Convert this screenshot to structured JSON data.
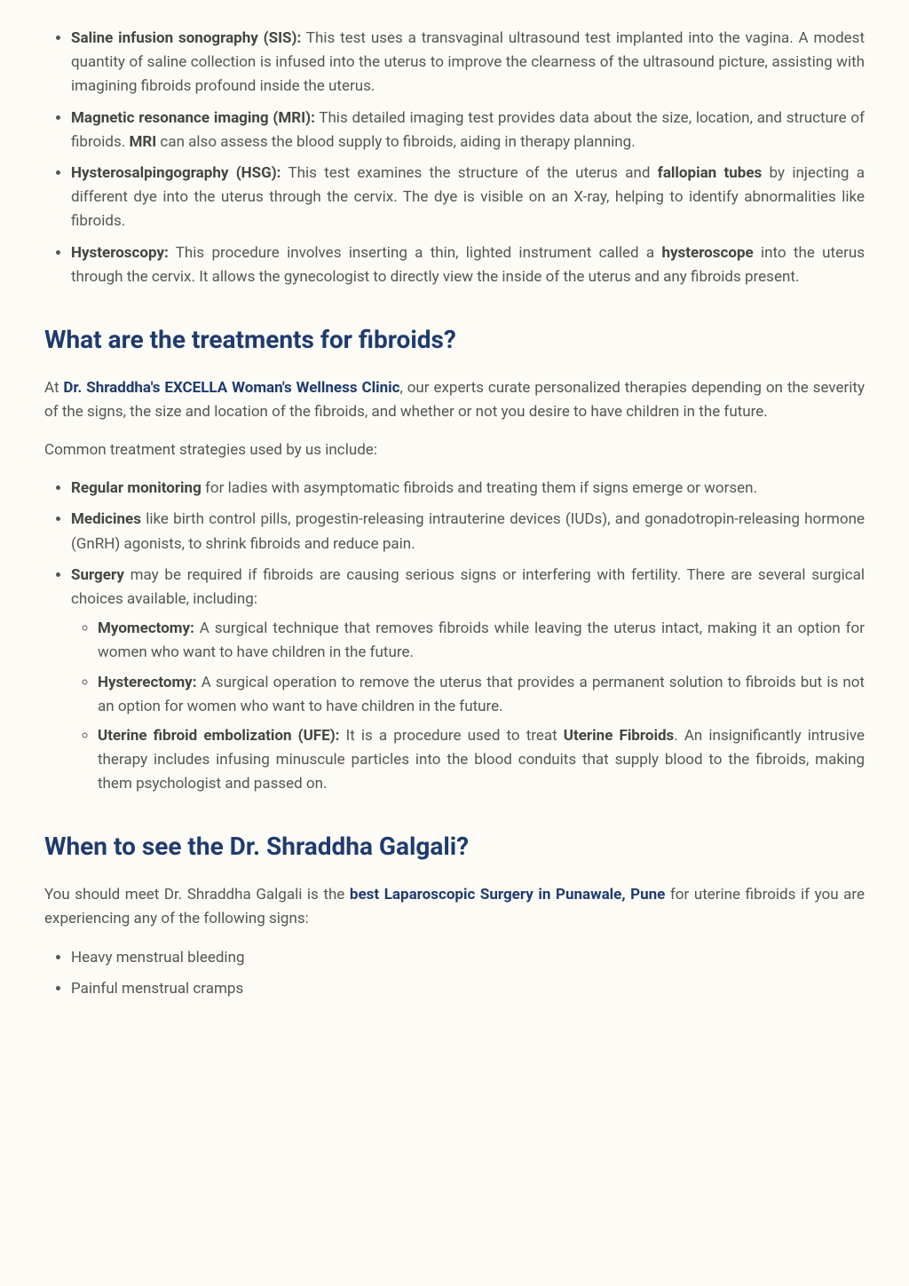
{
  "diag": {
    "sis_label": "Saline infusion sonography (SIS):",
    "sis_text": " This test uses a transvaginal ultrasound test implanted into the vagina. A modest quantity of saline collection is infused into the uterus to improve the clearness of the ultrasound picture, assisting with imagining fibroids profound inside the uterus.",
    "mri_label": "Magnetic resonance imaging (MRI):",
    "mri_text1": " This detailed imaging test provides data about the size, location, and structure of fibroids. ",
    "mri_bold": "MRI",
    "mri_text2": " can also assess the blood supply to fibroids, aiding in therapy planning.",
    "hsg_label": "Hysterosalpingography (HSG):",
    "hsg_text1": " This test examines the structure of the uterus and ",
    "hsg_bold": "fallopian tubes",
    "hsg_text2": " by injecting a different dye into the uterus through the cervix. The dye is visible on an X-ray, helping to identify abnormalities like fibroids.",
    "hyst_label": "Hysteroscopy:",
    "hyst_text1": " This procedure involves inserting a thin, lighted instrument called a ",
    "hyst_bold": "hysteroscope",
    "hyst_text2": " into the uterus through the cervix. It allows the gynecologist to directly view the inside of the uterus and any fibroids present."
  },
  "treat": {
    "heading": "What are the treatments for fibroids?",
    "intro_pre": "At ",
    "intro_link": "Dr. Shraddha's EXCELLA Woman's Wellness Clinic",
    "intro_post": ", our experts curate personalized therapies depending on the severity of the signs, the size and location of the fibroids, and whether or not you desire to have children in the future.",
    "common": "Common treatment strategies used by us include:",
    "reg_label": "Regular monitoring",
    "reg_text": " for ladies with asymptomatic fibroids and treating them if signs emerge or worsen.",
    "med_label": "Medicines",
    "med_text": " like birth control pills, progestin-releasing intrauterine devices (IUDs), and gonadotropin-releasing hormone (GnRH) agonists, to shrink fibroids and reduce pain.",
    "surg_label": "Surgery",
    "surg_text": " may be required if fibroids are causing serious signs or interfering with fertility. There are several surgical choices available, including:",
    "myo_label": "Myomectomy:",
    "myo_text": " A surgical technique that removes fibroids while leaving the uterus intact, making it an option for women who want to have children in the future.",
    "hyste_label": "Hysterectomy:",
    "hyste_text": " A surgical operation to remove the uterus that provides a permanent solution to fibroids but is not an option for women who want to have children in the future.",
    "ufe_label": "Uterine fibroid embolization (UFE):",
    "ufe_text1": " It is a procedure used to treat ",
    "ufe_bold": "Uterine Fibroids",
    "ufe_text2": ". An insignificantly intrusive therapy includes infusing minuscule particles into the blood conduits that supply blood to the fibroids, making them psychologist and passed on."
  },
  "when": {
    "heading": "When to see the Dr. Shraddha Galgali?",
    "intro_pre": "You should meet Dr. Shraddha Galgali is the ",
    "intro_link": "best Laparoscopic Surgery in Punawale, Pune",
    "intro_post": " for uterine fibroids if you are experiencing any of the following signs:",
    "s1": "Heavy menstrual bleeding",
    "s2": "Painful menstrual cramps"
  }
}
